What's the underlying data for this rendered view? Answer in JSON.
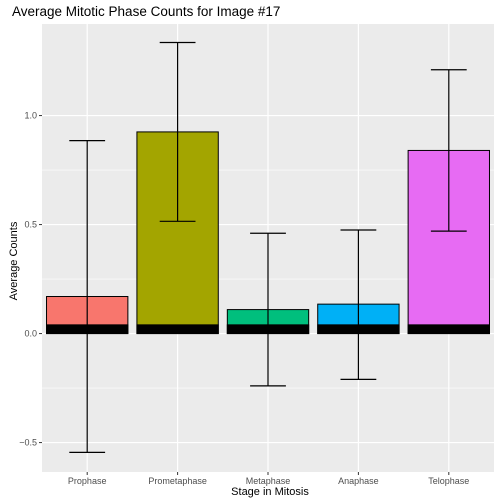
{
  "chart_data": {
    "type": "bar",
    "title": "Average Mitotic Phase Counts for Image #17",
    "xlabel": "Stage in Mitosis",
    "ylabel": "Average Counts",
    "categories": [
      "Prophase",
      "Prometaphase",
      "Metaphase",
      "Anaphase",
      "Telophase"
    ],
    "values": [
      0.17,
      0.925,
      0.11,
      0.135,
      0.84
    ],
    "error_low": [
      -0.545,
      0.515,
      -0.24,
      -0.21,
      0.47
    ],
    "error_high": [
      0.885,
      1.335,
      0.46,
      0.475,
      1.21
    ],
    "baseline_segment_value": 0.04,
    "ylim": [
      -0.635,
      1.42
    ],
    "yticks": [
      -0.5,
      0.0,
      0.5,
      1.0
    ],
    "ytick_labels": [
      "−0.5",
      "0.0",
      "0.5",
      "1.0"
    ],
    "grid": true,
    "colors": [
      "#F8766D",
      "#A3A500",
      "#00BF7D",
      "#00B0F6",
      "#E76BF3"
    ],
    "panel_background": "#EBEBEB",
    "grid_color": "#FFFFFF",
    "bar_outline": "#000000"
  }
}
